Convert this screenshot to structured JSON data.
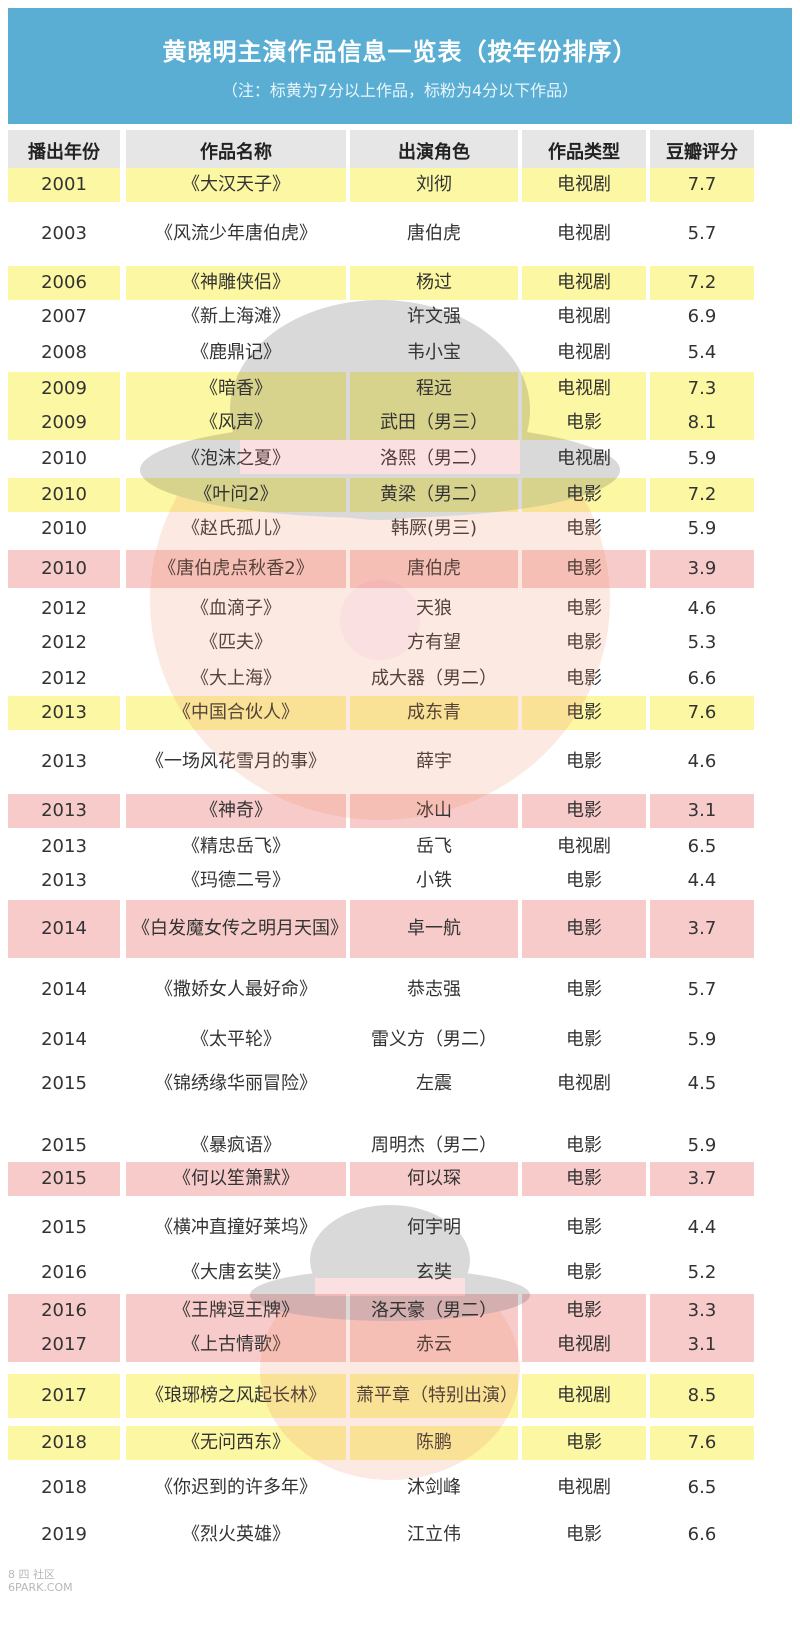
{
  "header": {
    "title": "黄晓明主演作品信息一览表（按年份排序）",
    "note": "（注：标黄为7分以上作品，标粉为4分以下作品）"
  },
  "columns": [
    "播出年份",
    "作品名称",
    "出演角色",
    "作品类型",
    "豆瓣评分"
  ],
  "rows": [
    {
      "year": "2001",
      "title": "《大汉天子》",
      "role": "刘彻",
      "type": "电视剧",
      "score": "7.7",
      "hl": "yellow"
    },
    {
      "year": "2003",
      "title": "《风流少年唐伯虎》",
      "role": "唐伯虎",
      "type": "电视剧",
      "score": "5.7",
      "hl": "white"
    },
    {
      "year": "2006",
      "title": "《神雕侠侣》",
      "role": "杨过",
      "type": "电视剧",
      "score": "7.2",
      "hl": "yellow"
    },
    {
      "year": "2007",
      "title": "《新上海滩》",
      "role": "许文强",
      "type": "电视剧",
      "score": "6.9",
      "hl": "white"
    },
    {
      "year": "2008",
      "title": "《鹿鼎记》",
      "role": "韦小宝",
      "type": "电视剧",
      "score": "5.4",
      "hl": "white"
    },
    {
      "year": "2009",
      "title": "《暗香》",
      "role": "程远",
      "type": "电视剧",
      "score": "7.3",
      "hl": "yellow"
    },
    {
      "year": "2009",
      "title": "《风声》",
      "role": "武田（男三）",
      "type": "电影",
      "score": "8.1",
      "hl": "yellow"
    },
    {
      "year": "2010",
      "title": "《泡沫之夏》",
      "role": "洛熙（男二）",
      "type": "电视剧",
      "score": "5.9",
      "hl": "white"
    },
    {
      "year": "2010",
      "title": "《叶问2》",
      "role": "黄梁（男二）",
      "type": "电影",
      "score": "7.2",
      "hl": "yellow"
    },
    {
      "year": "2010",
      "title": "《赵氏孤儿》",
      "role": "韩厥(男三)",
      "type": "电影",
      "score": "5.9",
      "hl": "white"
    },
    {
      "year": "2010",
      "title": "《唐伯虎点秋香2》",
      "role": "唐伯虎",
      "type": "电影",
      "score": "3.9",
      "hl": "pink"
    },
    {
      "year": "2012",
      "title": "《血滴子》",
      "role": "天狼",
      "type": "电影",
      "score": "4.6",
      "hl": "white"
    },
    {
      "year": "2012",
      "title": "《匹夫》",
      "role": "方有望",
      "type": "电影",
      "score": "5.3",
      "hl": "white"
    },
    {
      "year": "2012",
      "title": "《大上海》",
      "role": "成大器（男二）",
      "type": "电影",
      "score": "6.6",
      "hl": "white"
    },
    {
      "year": "2013",
      "title": "《中国合伙人》",
      "role": "成东青",
      "type": "电影",
      "score": "7.6",
      "hl": "yellow"
    },
    {
      "year": "2013",
      "title": "《一场风花雪月的事》",
      "role": "薛宇",
      "type": "电影",
      "score": "4.6",
      "hl": "white"
    },
    {
      "year": "2013",
      "title": "《神奇》",
      "role": "冰山",
      "type": "电影",
      "score": "3.1",
      "hl": "pink"
    },
    {
      "year": "2013",
      "title": "《精忠岳飞》",
      "role": "岳飞",
      "type": "电视剧",
      "score": "6.5",
      "hl": "white"
    },
    {
      "year": "2013",
      "title": "《玛德二号》",
      "role": "小铁",
      "type": "电影",
      "score": "4.4",
      "hl": "white"
    },
    {
      "year": "2014",
      "title": "《白发魔女传之明月天国》",
      "role": "卓一航",
      "type": "电影",
      "score": "3.7",
      "hl": "pink"
    },
    {
      "year": "2014",
      "title": "《撒娇女人最好命》",
      "role": "恭志强",
      "type": "电影",
      "score": "5.7",
      "hl": "white"
    },
    {
      "year": "2014",
      "title": "《太平轮》",
      "role": "雷义方（男二）",
      "type": "电影",
      "score": "5.9",
      "hl": "white"
    },
    {
      "year": "2015",
      "title": "《锦绣缘华丽冒险》",
      "role": "左震",
      "type": "电视剧",
      "score": "4.5",
      "hl": "white"
    },
    {
      "year": "2015",
      "title": "《暴疯语》",
      "role": "周明杰（男二）",
      "type": "电影",
      "score": "5.9",
      "hl": "white"
    },
    {
      "year": "2015",
      "title": "《何以笙箫默》",
      "role": "何以琛",
      "type": "电影",
      "score": "3.7",
      "hl": "pink"
    },
    {
      "year": "2015",
      "title": "《横冲直撞好莱坞》",
      "role": "何宇明",
      "type": "电影",
      "score": "4.4",
      "hl": "white"
    },
    {
      "year": "2016",
      "title": "《大唐玄奘》",
      "role": "玄奘",
      "type": "电影",
      "score": "5.2",
      "hl": "white"
    },
    {
      "year": "2016",
      "title": "《王牌逗王牌》",
      "role": "洛天豪（男二）",
      "type": "电影",
      "score": "3.3",
      "hl": "pink"
    },
    {
      "year": "2017",
      "title": "《上古情歌》",
      "role": "赤云",
      "type": "电视剧",
      "score": "3.1",
      "hl": "pink"
    },
    {
      "year": "2017",
      "title": "《琅琊榜之风起长林》",
      "role": "萧平章（特别出演）",
      "type": "电视剧",
      "score": "8.5",
      "hl": "yellow"
    },
    {
      "year": "2018",
      "title": "《无问西东》",
      "role": "陈鹏",
      "type": "电影",
      "score": "7.6",
      "hl": "yellow"
    },
    {
      "year": "2018",
      "title": "《你迟到的许多年》",
      "role": "沐剑峰",
      "type": "电视剧",
      "score": "6.5",
      "hl": "white"
    },
    {
      "year": "2019",
      "title": "《烈火英雄》",
      "role": "江立伟",
      "type": "电影",
      "score": "6.6",
      "hl": "white"
    }
  ],
  "watermark": {
    "line1": "8 四 社区",
    "line2": "6PARK.COM"
  },
  "colors": {
    "header": "#5aaed3",
    "yellow": "#fcf7a2",
    "pink": "#f8cbcb",
    "colhead": "#e6e6e6"
  }
}
